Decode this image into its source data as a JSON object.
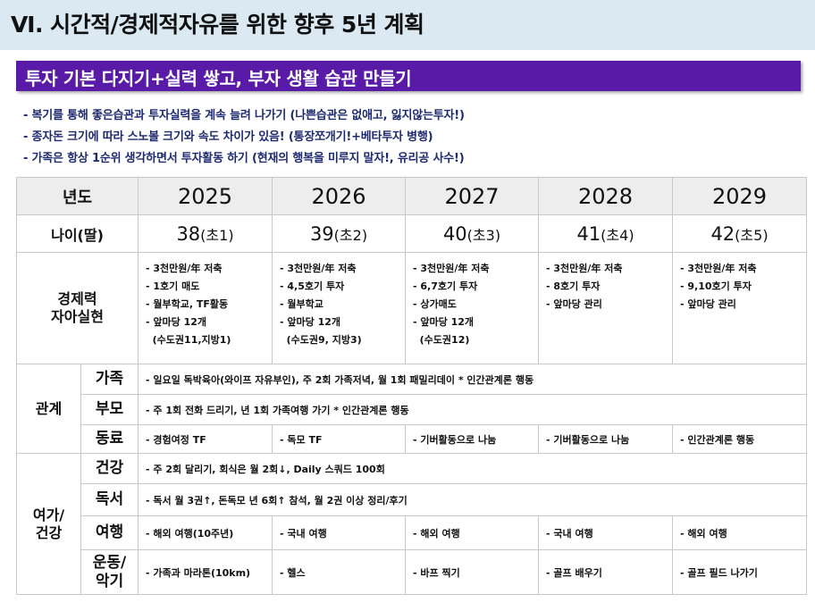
{
  "title": "Ⅵ. 시간적/경제적자유를 위한 향후 5년 계획",
  "banner": "투자 기본 다지기+실력 쌓고, 부자 생활 습관 만들기",
  "bullets": [
    "- 복기를 통해 좋은습관과 투자실력을 계속 늘려 나가기 (나쁜습관은 없애고, 잃지않는투자!)",
    "- 종자돈 크기에 따라 스노볼 크기와 속도 차이가 있음! (통장쪼개기!+베타투자 병행)",
    "- 가족은 항상 1순위 생각하면서 투자활동 하기 (현재의 행복을 미루지 말자!, 유리공 사수!)"
  ],
  "table": {
    "year_label": "년도",
    "years": [
      "2025",
      "2026",
      "2027",
      "2028",
      "2029"
    ],
    "age_label": "나이(딸)",
    "ages": [
      {
        "num": "38",
        "grade": "(초1)"
      },
      {
        "num": "39",
        "grade": "(초2)"
      },
      {
        "num": "40",
        "grade": "(초3)"
      },
      {
        "num": "41",
        "grade": "(초4)"
      },
      {
        "num": "42",
        "grade": "(초5)"
      }
    ],
    "econ_label": "경제력\n자아실현",
    "econ": [
      [
        "- 3천만원/年 저축",
        "- 1호기 매도",
        "- 월부학교, TF활동",
        "- 앞마당 12개",
        "  (수도권11,지방1)"
      ],
      [
        "- 3천만원/年 저축",
        "- 4,5호기 투자",
        "- 월부학교",
        "- 앞마당 12개",
        "  (수도권9, 지방3)"
      ],
      [
        "- 3천만원/年 저축",
        "- 6,7호기 투자",
        "- 상가매도",
        "- 앞마당 12개",
        "  (수도권12)"
      ],
      [
        "- 3천만원/年 저축",
        "- 8호기 투자",
        "- 앞마당 관리"
      ],
      [
        "- 3천만원/年 저축",
        "- 9,10호기 투자",
        "- 앞마당 관리"
      ]
    ],
    "relation_label": "관계",
    "family_label": "가족",
    "family_text": "- 일요일 독박육아(와이프 자유부인), 주 2회 가족저녁, 월 1회 패밀리데이   * 인간관계론 행동",
    "parents_label": "부모",
    "parents_text": "- 주 1회 전화 드리기, 년 1회 가족여행 가기   * 인간관계론 행동",
    "colleague_label": "동료",
    "colleague": [
      "- 경험여정 TF",
      "- 독모 TF",
      "- 기버활동으로 나눔",
      "- 기버활동으로 나눔",
      "- 인간관계론 행동"
    ],
    "leisure_label": "여가/\n건강",
    "health_label": "건강",
    "health_text": "- 주 2회 달리기, 회식은 월 2회↓, Daily 스쿼드 100회",
    "reading_label": "독서",
    "reading_text": "- 독서 월 3권↑, 돈독모 년 6회↑ 참석, 월 2권 이상 정리/후기",
    "travel_label": "여행",
    "travel": [
      "- 해외 여행(10주년)",
      "- 국내 여행",
      "- 해외 여행",
      "- 국내 여행",
      "- 해외 여행"
    ],
    "exercise_label": "운동/\n악기",
    "exercise": [
      "- 가족과 마라톤(10km)",
      "- 헬스",
      "- 바프 찍기",
      "- 골프 배우기",
      "- 골프 필드 나가기"
    ]
  }
}
